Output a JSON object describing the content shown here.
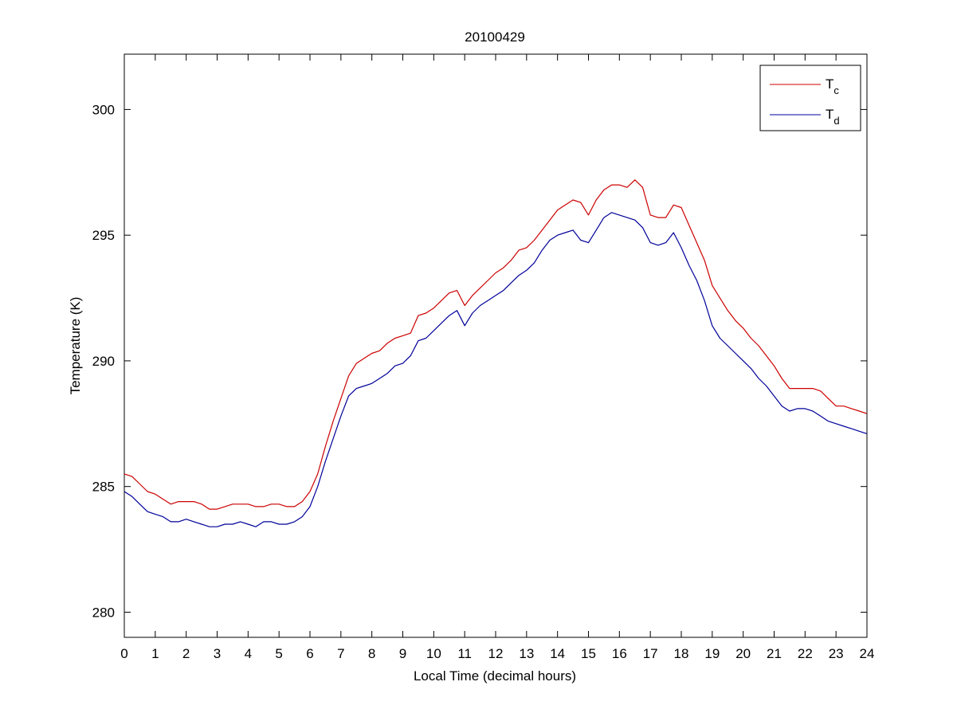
{
  "chart_data": {
    "type": "line",
    "title": "20100429",
    "xlabel": "Local Time (decimal hours)",
    "ylabel": "Temperature (K)",
    "xlim": [
      0,
      24
    ],
    "ylim": [
      279,
      302.2
    ],
    "xticks": [
      0,
      1,
      2,
      3,
      4,
      5,
      6,
      7,
      8,
      9,
      10,
      11,
      12,
      13,
      14,
      15,
      16,
      17,
      18,
      19,
      20,
      21,
      22,
      23,
      24
    ],
    "yticks": [
      280,
      285,
      290,
      295,
      300
    ],
    "grid": false,
    "legend": {
      "position": "top-right",
      "entries": [
        {
          "base": "T",
          "sub": "c",
          "color": "#cc0000"
        },
        {
          "base": "T",
          "sub": "d",
          "color": "#000099"
        }
      ]
    },
    "series": [
      {
        "color": "#cc0000",
        "x": [
          0,
          0.25,
          0.5,
          0.75,
          1,
          1.25,
          1.5,
          1.75,
          2,
          2.25,
          2.5,
          2.75,
          3,
          3.25,
          3.5,
          3.75,
          4,
          4.25,
          4.5,
          4.75,
          5,
          5.25,
          5.5,
          5.75,
          6,
          6.25,
          6.5,
          6.75,
          7,
          7.25,
          7.5,
          7.75,
          8,
          8.25,
          8.5,
          8.75,
          9,
          9.25,
          9.5,
          9.75,
          10,
          10.25,
          10.5,
          10.75,
          11,
          11.25,
          11.5,
          11.75,
          12,
          12.25,
          12.5,
          12.75,
          13,
          13.25,
          13.5,
          13.75,
          14,
          14.25,
          14.5,
          14.75,
          15,
          15.25,
          15.5,
          15.75,
          16,
          16.25,
          16.5,
          16.75,
          17,
          17.25,
          17.5,
          17.75,
          18,
          18.25,
          18.5,
          18.75,
          19,
          19.25,
          19.5,
          19.75,
          20,
          20.25,
          20.5,
          20.75,
          21,
          21.25,
          21.5,
          21.75,
          22,
          22.25,
          22.5,
          22.75,
          23,
          23.25,
          23.5,
          23.75,
          24
        ],
        "values": [
          285.5,
          285.4,
          285.1,
          284.8,
          284.7,
          284.5,
          284.3,
          284.4,
          284.4,
          284.4,
          284.3,
          284.1,
          284.1,
          284.2,
          284.3,
          284.3,
          284.3,
          284.2,
          284.2,
          284.3,
          284.3,
          284.2,
          284.2,
          284.4,
          284.8,
          285.5,
          286.6,
          287.6,
          288.5,
          289.4,
          289.9,
          290.1,
          290.3,
          290.4,
          290.7,
          290.9,
          291.0,
          291.1,
          291.8,
          291.9,
          292.1,
          292.4,
          292.7,
          292.8,
          292.2,
          292.6,
          292.9,
          293.2,
          293.5,
          293.7,
          294.0,
          294.4,
          294.5,
          294.8,
          295.2,
          295.6,
          296.0,
          296.2,
          296.4,
          296.3,
          295.8,
          296.4,
          296.8,
          297.0,
          297.0,
          296.9,
          297.2,
          296.9,
          295.8,
          295.7,
          295.7,
          296.2,
          296.1,
          295.4,
          294.7,
          294.0,
          293.0,
          292.5,
          292.0,
          291.6,
          291.3,
          290.9,
          290.6,
          290.2,
          289.8,
          289.3,
          288.9,
          288.9,
          288.9,
          288.9,
          288.8,
          288.5,
          288.2,
          288.2,
          288.1,
          288.0,
          287.9
        ],
        "name": ""
      },
      {
        "color": "#000099",
        "x": [
          0,
          0.25,
          0.5,
          0.75,
          1,
          1.25,
          1.5,
          1.75,
          2,
          2.25,
          2.5,
          2.75,
          3,
          3.25,
          3.5,
          3.75,
          4,
          4.25,
          4.5,
          4.75,
          5,
          5.25,
          5.5,
          5.75,
          6,
          6.25,
          6.5,
          6.75,
          7,
          7.25,
          7.5,
          7.75,
          8,
          8.25,
          8.5,
          8.75,
          9,
          9.25,
          9.5,
          9.75,
          10,
          10.25,
          10.5,
          10.75,
          11,
          11.25,
          11.5,
          11.75,
          12,
          12.25,
          12.5,
          12.75,
          13,
          13.25,
          13.5,
          13.75,
          14,
          14.25,
          14.5,
          14.75,
          15,
          15.25,
          15.5,
          15.75,
          16,
          16.25,
          16.5,
          16.75,
          17,
          17.25,
          17.5,
          17.75,
          18,
          18.25,
          18.5,
          18.75,
          19,
          19.25,
          19.5,
          19.75,
          20,
          20.25,
          20.5,
          20.75,
          21,
          21.25,
          21.5,
          21.75,
          22,
          22.25,
          22.5,
          22.75,
          23,
          23.25,
          23.5,
          23.75,
          24
        ],
        "values": [
          284.8,
          284.6,
          284.3,
          284.0,
          283.9,
          283.8,
          283.6,
          283.6,
          283.7,
          283.6,
          283.5,
          283.4,
          283.4,
          283.5,
          283.5,
          283.6,
          283.5,
          283.4,
          283.6,
          283.6,
          283.5,
          283.5,
          283.6,
          283.8,
          284.2,
          285.0,
          286.0,
          286.9,
          287.8,
          288.6,
          288.9,
          289.0,
          289.1,
          289.3,
          289.5,
          289.8,
          289.9,
          290.2,
          290.8,
          290.9,
          291.2,
          291.5,
          291.8,
          292.0,
          291.4,
          291.9,
          292.2,
          292.4,
          292.6,
          292.8,
          293.1,
          293.4,
          293.6,
          293.9,
          294.4,
          294.8,
          295.0,
          295.1,
          295.2,
          294.8,
          294.7,
          295.2,
          295.7,
          295.9,
          295.8,
          295.7,
          295.6,
          295.3,
          294.7,
          294.6,
          294.7,
          295.1,
          294.5,
          293.8,
          293.2,
          292.4,
          291.4,
          290.9,
          290.6,
          290.3,
          290.0,
          289.7,
          289.3,
          289.0,
          288.6,
          288.2,
          288.0,
          288.1,
          288.1,
          288.0,
          287.8,
          287.6,
          287.5,
          287.4,
          287.3,
          287.2,
          287.1
        ],
        "name": ""
      }
    ]
  }
}
